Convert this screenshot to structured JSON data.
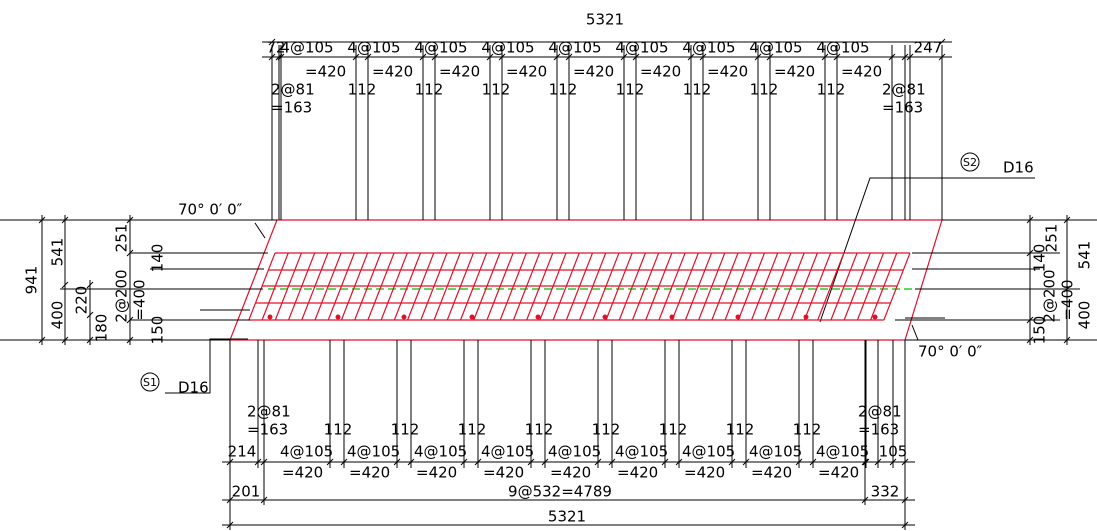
{
  "top": {
    "total": "5321",
    "start": "72",
    "end": "247",
    "groups": [
      "4@105",
      "4@105",
      "4@105",
      "4@105",
      "4@105",
      "4@105",
      "4@105",
      "4@105",
      "4@105"
    ],
    "group_totals": [
      "=420",
      "=420",
      "=420",
      "=420",
      "=420",
      "=420",
      "=420",
      "=420",
      "=420"
    ],
    "gaps": [
      "112",
      "112",
      "112",
      "112",
      "112",
      "112",
      "112",
      "112"
    ],
    "left_pitch": "2@81",
    "left_pitch_total": "=163",
    "right_pitch": "2@81",
    "right_pitch_total": "=163"
  },
  "angles": [
    "70° 0′ 0″",
    "70° 0′ 0″"
  ],
  "callouts": [
    {
      "mark": "S2",
      "label": "D16"
    },
    {
      "mark": "S1",
      "label": "D16"
    }
  ],
  "left": {
    "total": "941",
    "upper": "541",
    "lower": "400",
    "top_cover": "251",
    "offset": "140",
    "mid": "220",
    "bottom": "180",
    "pitch": "2@200",
    "pitch_total": "=400",
    "bottom_cover": "150"
  },
  "right": {
    "top_cover": "251",
    "upper": "541",
    "offset": "140",
    "pitch": "2@200",
    "pitch_total": "=400",
    "lower": "400",
    "bottom_cover": "150"
  },
  "bottom": {
    "left_pitch": "2@81",
    "left_pitch_total": "=163",
    "right_pitch": "2@81",
    "right_pitch_total": "=163",
    "start": "214",
    "end": "105",
    "groups": [
      "4@105",
      "4@105",
      "4@105",
      "4@105",
      "4@105",
      "4@105",
      "4@105",
      "4@105",
      "4@105"
    ],
    "group_totals": [
      "=420",
      "=420",
      "=420",
      "=420",
      "=420",
      "=420",
      "=420",
      "=420",
      "=420"
    ],
    "gaps": [
      "112",
      "112",
      "112",
      "112",
      "112",
      "112",
      "112",
      "112"
    ],
    "left_span": "201",
    "span": "9@532=4789",
    "right_span": "332",
    "total": "5321"
  }
}
